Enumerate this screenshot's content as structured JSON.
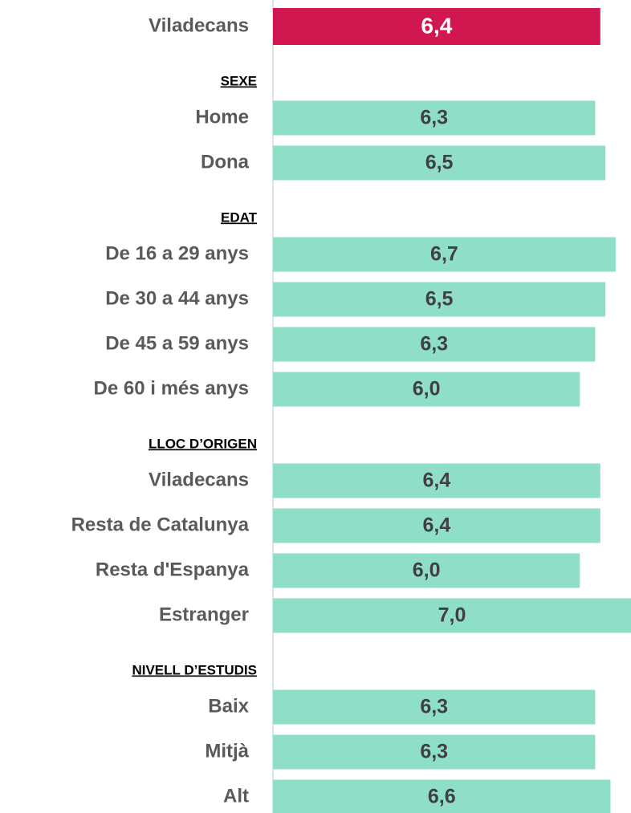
{
  "chart_data": {
    "type": "bar",
    "orientation": "horizontal",
    "xlim": [
      0,
      7
    ],
    "total": {
      "category": "Viladecans",
      "value": 6.4,
      "value_label": "6,4",
      "color": "#d0174f"
    },
    "color": "#8fdfc8",
    "groups": [
      {
        "title": "SEXE",
        "categories": [
          "Home",
          "Dona"
        ],
        "values": [
          6.3,
          6.5
        ],
        "value_labels": [
          "6,3",
          "6,5"
        ]
      },
      {
        "title": "EDAT",
        "categories": [
          "De 16 a 29 anys",
          "De 30 a 44 anys",
          "De 45 a 59 anys",
          "De 60 i més anys"
        ],
        "values": [
          6.7,
          6.5,
          6.3,
          6.0
        ],
        "value_labels": [
          "6,7",
          "6,5",
          "6,3",
          "6,0"
        ]
      },
      {
        "title": "LLOC D’ORIGEN",
        "categories": [
          "Viladecans",
          "Resta de Catalunya",
          "Resta d'Espanya",
          "Estranger"
        ],
        "values": [
          6.4,
          6.4,
          6.0,
          7.0
        ],
        "value_labels": [
          "6,4",
          "6,4",
          "6,0",
          "7,0"
        ]
      },
      {
        "title": "NIVELL D’ESTUDIS",
        "categories": [
          "Baix",
          "Mitjà",
          "Alt"
        ],
        "values": [
          6.3,
          6.3,
          6.6
        ],
        "value_labels": [
          "6,3",
          "6,3",
          "6,6"
        ]
      }
    ]
  }
}
